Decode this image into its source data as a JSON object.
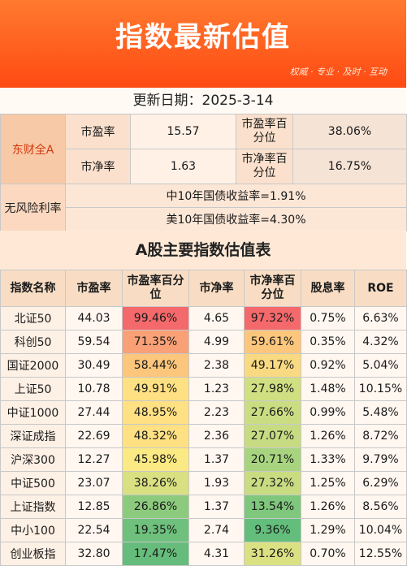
{
  "banner": {
    "title": "指数最新估值",
    "slogan": "权威 · 专业 · 及时 · 互动"
  },
  "update": {
    "text": "更新日期：2025-3-14"
  },
  "summary": {
    "market_label": "东财全A",
    "pe_label": "市盈率",
    "pe_value": "15.57",
    "pe_pct_label": "市盈率百分位",
    "pe_pct_value": "38.06%",
    "pb_label": "市净率",
    "pb_value": "1.63",
    "pb_pct_label": "市净率百分位",
    "pb_pct_value": "16.75%",
    "risk_free_label": "无风险利率",
    "cn_yield": "中10年国债收益率=1.91%",
    "us_yield": "美10年国债收益率=4.30%"
  },
  "table": {
    "title": "A股主要指数估值表",
    "headers": [
      "指数名称",
      "市盈率",
      "市盈率百分位",
      "市净率",
      "市净率百分位",
      "股息率",
      "ROE"
    ],
    "rows": [
      [
        "北证50",
        "44.03",
        "99.46%",
        "4.65",
        "97.32%",
        "0.75%",
        "6.63%"
      ],
      [
        "科创50",
        "59.54",
        "71.35%",
        "4.99",
        "59.61%",
        "0.35%",
        "4.32%"
      ],
      [
        "国证2000",
        "30.49",
        "58.44%",
        "2.38",
        "49.17%",
        "0.92%",
        "5.04%"
      ],
      [
        "上证50",
        "10.78",
        "49.91%",
        "1.23",
        "27.98%",
        "1.48%",
        "10.15%"
      ],
      [
        "中证1000",
        "27.44",
        "48.95%",
        "2.23",
        "27.66%",
        "0.99%",
        "5.48%"
      ],
      [
        "深证成指",
        "22.69",
        "48.32%",
        "2.36",
        "27.07%",
        "1.26%",
        "8.72%"
      ],
      [
        "沪深300",
        "12.27",
        "45.98%",
        "1.37",
        "20.71%",
        "1.33%",
        "9.79%"
      ],
      [
        "中证500",
        "23.07",
        "38.26%",
        "1.93",
        "27.32%",
        "1.25%",
        "6.29%"
      ],
      [
        "上证指数",
        "12.85",
        "26.86%",
        "1.37",
        "13.54%",
        "1.26%",
        "8.56%"
      ],
      [
        "中小100",
        "22.54",
        "19.35%",
        "2.74",
        "9.36%",
        "1.29%",
        "10.04%"
      ],
      [
        "创业板指",
        "32.80",
        "17.47%",
        "4.31",
        "31.26%",
        "0.70%",
        "12.55%"
      ]
    ],
    "heat_colors": {
      "pe_pct": [
        "#f4696b",
        "#f9a077",
        "#fcc67c",
        "#ffe083",
        "#ffe083",
        "#ffe083",
        "#fbe983",
        "#d8e081",
        "#8ccb7d",
        "#6ec07c",
        "#66bd7b"
      ],
      "pb_pct": [
        "#f4696b",
        "#fcc67c",
        "#f9d981",
        "#cfdf81",
        "#cbdd82",
        "#c7dc82",
        "#a8d47f",
        "#c9dc82",
        "#7fc77c",
        "#63be7b",
        "#d9e182"
      ]
    }
  }
}
